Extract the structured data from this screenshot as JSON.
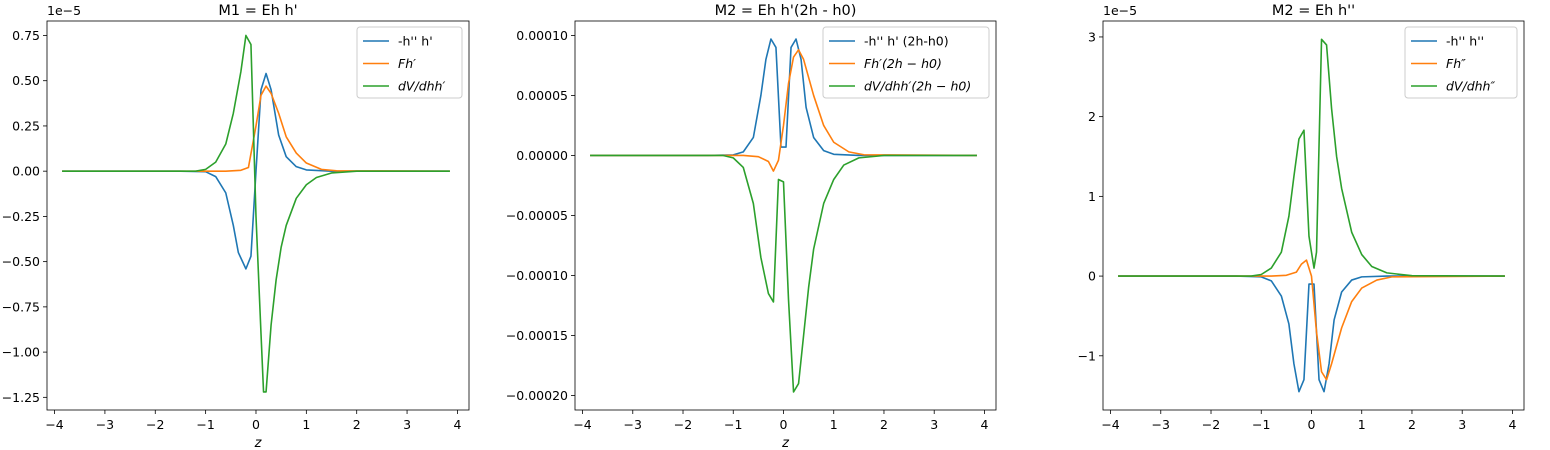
{
  "chart_data": [
    {
      "type": "line",
      "title": "M1 = Eh h'",
      "xlabel": "z",
      "xlim": [
        -4.15,
        4.23
      ],
      "ylim": [
        -1.32,
        0.83
      ],
      "y_offset_label": "1e−5",
      "xticks": [
        -4,
        -3,
        -2,
        -1,
        0,
        1,
        2,
        3,
        4
      ],
      "xtick_labels": [
        "−4",
        "−3",
        "−2",
        "−1",
        "0",
        "1",
        "2",
        "3",
        "4"
      ],
      "yticks": [
        -1.25,
        -1.0,
        -0.75,
        -0.5,
        -0.25,
        0.0,
        0.25,
        0.5,
        0.75
      ],
      "ytick_labels": [
        "−1.25",
        "−1.00",
        "−0.75",
        "−0.50",
        "−0.25",
        "0.00",
        "0.25",
        "0.50",
        "0.75"
      ],
      "legend_position": "top-right",
      "series": [
        {
          "name": "-h'' h'",
          "legend_style": "plain",
          "color": "#1f77b4",
          "points": [
            [
              -3.85,
              0
            ],
            [
              -1.5,
              0
            ],
            [
              -1.0,
              -0.003
            ],
            [
              -0.8,
              -0.03
            ],
            [
              -0.6,
              -0.12
            ],
            [
              -0.45,
              -0.3
            ],
            [
              -0.35,
              -0.45
            ],
            [
              -0.2,
              -0.54
            ],
            [
              -0.1,
              -0.47
            ],
            [
              0.0,
              0.0
            ],
            [
              0.1,
              0.45
            ],
            [
              0.2,
              0.54
            ],
            [
              0.3,
              0.45
            ],
            [
              0.45,
              0.2
            ],
            [
              0.6,
              0.08
            ],
            [
              0.8,
              0.025
            ],
            [
              1.0,
              0.007
            ],
            [
              1.5,
              0
            ],
            [
              3.85,
              0
            ]
          ]
        },
        {
          "name": "Fh′",
          "legend_style": "math",
          "color": "#ff7f0e",
          "points": [
            [
              -3.85,
              0
            ],
            [
              -0.6,
              0
            ],
            [
              -0.3,
              0.005
            ],
            [
              -0.15,
              0.02
            ],
            [
              0.0,
              0.25
            ],
            [
              0.1,
              0.42
            ],
            [
              0.2,
              0.47
            ],
            [
              0.3,
              0.43
            ],
            [
              0.45,
              0.32
            ],
            [
              0.6,
              0.19
            ],
            [
              0.8,
              0.1
            ],
            [
              1.0,
              0.045
            ],
            [
              1.3,
              0.01
            ],
            [
              1.6,
              0.002
            ],
            [
              3.85,
              0
            ]
          ]
        },
        {
          "name": "dV/dhh′",
          "legend_style": "math",
          "color": "#2ca02c",
          "points": [
            [
              -3.85,
              0
            ],
            [
              -1.2,
              0
            ],
            [
              -1.0,
              0.01
            ],
            [
              -0.8,
              0.05
            ],
            [
              -0.6,
              0.15
            ],
            [
              -0.45,
              0.32
            ],
            [
              -0.3,
              0.55
            ],
            [
              -0.2,
              0.75
            ],
            [
              -0.1,
              0.7
            ],
            [
              0.0,
              -0.25
            ],
            [
              0.1,
              -0.9
            ],
            [
              0.15,
              -1.22
            ],
            [
              0.2,
              -1.22
            ],
            [
              0.3,
              -0.85
            ],
            [
              0.4,
              -0.6
            ],
            [
              0.5,
              -0.42
            ],
            [
              0.6,
              -0.3
            ],
            [
              0.8,
              -0.15
            ],
            [
              1.0,
              -0.075
            ],
            [
              1.2,
              -0.035
            ],
            [
              1.5,
              -0.01
            ],
            [
              2.0,
              0
            ],
            [
              3.85,
              0
            ]
          ]
        }
      ]
    },
    {
      "type": "line",
      "title": "M2 = Eh h'(2h - h0)",
      "xlabel": "z",
      "xlim": [
        -4.15,
        4.23
      ],
      "ylim": [
        -0.000212,
        0.000112
      ],
      "y_offset_label": "",
      "xticks": [
        -4,
        -3,
        -2,
        -1,
        0,
        1,
        2,
        3,
        4
      ],
      "xtick_labels": [
        "−4",
        "−3",
        "−2",
        "−1",
        "0",
        "1",
        "2",
        "3",
        "4"
      ],
      "yticks": [
        -0.0002,
        -0.00015,
        -0.0001,
        -5e-05,
        0.0,
        5e-05,
        0.0001
      ],
      "ytick_labels": [
        "−0.00020",
        "−0.00015",
        "−0.00010",
        "−0.00005",
        "0.00000",
        "0.00005",
        "0.00010"
      ],
      "legend_position": "top-right",
      "series": [
        {
          "name": "-h'' h' (2h-h0)",
          "legend_style": "plain",
          "color": "#1f77b4",
          "points": [
            [
              -3.85,
              0
            ],
            [
              -1.5,
              0
            ],
            [
              -1.0,
              5e-07
            ],
            [
              -0.8,
              3e-06
            ],
            [
              -0.6,
              1.5e-05
            ],
            [
              -0.45,
              5e-05
            ],
            [
              -0.35,
              8e-05
            ],
            [
              -0.25,
              9.7e-05
            ],
            [
              -0.15,
              9e-05
            ],
            [
              -0.05,
              7e-06
            ],
            [
              0.05,
              7e-06
            ],
            [
              0.15,
              9e-05
            ],
            [
              0.25,
              9.7e-05
            ],
            [
              0.35,
              8e-05
            ],
            [
              0.45,
              4e-05
            ],
            [
              0.6,
              1.5e-05
            ],
            [
              0.8,
              4e-06
            ],
            [
              1.0,
              1e-06
            ],
            [
              1.5,
              0
            ],
            [
              3.85,
              0
            ]
          ]
        },
        {
          "name": "Fh′(2h − h0)",
          "legend_style": "math",
          "color": "#ff7f0e",
          "points": [
            [
              -3.85,
              0
            ],
            [
              -0.8,
              0
            ],
            [
              -0.5,
              -1e-06
            ],
            [
              -0.3,
              -5e-06
            ],
            [
              -0.2,
              -1.3e-05
            ],
            [
              -0.1,
              -4e-06
            ],
            [
              0.0,
              2.5e-05
            ],
            [
              0.1,
              6e-05
            ],
            [
              0.2,
              8.2e-05
            ],
            [
              0.3,
              8.8e-05
            ],
            [
              0.4,
              8e-05
            ],
            [
              0.6,
              5e-05
            ],
            [
              0.8,
              2.5e-05
            ],
            [
              1.0,
              1.1e-05
            ],
            [
              1.3,
              3e-06
            ],
            [
              1.6,
              6e-07
            ],
            [
              3.85,
              0
            ]
          ]
        },
        {
          "name": "dV/dhh′(2h − h0)",
          "legend_style": "math",
          "color": "#2ca02c",
          "points": [
            [
              -3.85,
              0
            ],
            [
              -1.2,
              0
            ],
            [
              -1.0,
              -2e-06
            ],
            [
              -0.8,
              -1e-05
            ],
            [
              -0.6,
              -4e-05
            ],
            [
              -0.45,
              -8.5e-05
            ],
            [
              -0.3,
              -0.000115
            ],
            [
              -0.2,
              -0.000122
            ],
            [
              -0.1,
              -2e-05
            ],
            [
              0.0,
              -2.2e-05
            ],
            [
              0.1,
              -0.00012
            ],
            [
              0.2,
              -0.000197
            ],
            [
              0.3,
              -0.00019
            ],
            [
              0.4,
              -0.00015
            ],
            [
              0.5,
              -0.00011
            ],
            [
              0.6,
              -7.8e-05
            ],
            [
              0.8,
              -4e-05
            ],
            [
              1.0,
              -2e-05
            ],
            [
              1.2,
              -8e-06
            ],
            [
              1.5,
              -2e-06
            ],
            [
              2.0,
              0
            ],
            [
              3.85,
              0
            ]
          ]
        }
      ]
    },
    {
      "type": "line",
      "title": "M2 = Eh h''",
      "xlabel": "",
      "xlim": [
        -4.15,
        4.23
      ],
      "ylim": [
        -1.68,
        3.2
      ],
      "y_offset_label": "1e−5",
      "xticks": [
        -4,
        -3,
        -2,
        -1,
        0,
        1,
        2,
        3,
        4
      ],
      "xtick_labels": [
        "−4",
        "−3",
        "−2",
        "−1",
        "0",
        "1",
        "2",
        "3",
        "4"
      ],
      "yticks": [
        -1,
        0,
        1,
        2,
        3
      ],
      "ytick_labels": [
        "−1",
        "0",
        "1",
        "2",
        "3"
      ],
      "legend_position": "top-right",
      "series": [
        {
          "name": "-h'' h''",
          "legend_style": "plain",
          "color": "#1f77b4",
          "points": [
            [
              -3.85,
              0
            ],
            [
              -1.5,
              0
            ],
            [
              -1.0,
              -0.01
            ],
            [
              -0.8,
              -0.06
            ],
            [
              -0.6,
              -0.25
            ],
            [
              -0.45,
              -0.6
            ],
            [
              -0.35,
              -1.1
            ],
            [
              -0.25,
              -1.45
            ],
            [
              -0.15,
              -1.3
            ],
            [
              -0.05,
              -0.1
            ],
            [
              0.05,
              -0.1
            ],
            [
              0.15,
              -1.3
            ],
            [
              0.25,
              -1.45
            ],
            [
              0.35,
              -1.1
            ],
            [
              0.45,
              -0.55
            ],
            [
              0.6,
              -0.2
            ],
            [
              0.8,
              -0.05
            ],
            [
              1.0,
              -0.01
            ],
            [
              1.5,
              0
            ],
            [
              3.85,
              0
            ]
          ]
        },
        {
          "name": "Fh″",
          "legend_style": "math",
          "color": "#ff7f0e",
          "points": [
            [
              -3.85,
              0
            ],
            [
              -0.8,
              0
            ],
            [
              -0.5,
              0.01
            ],
            [
              -0.3,
              0.05
            ],
            [
              -0.2,
              0.15
            ],
            [
              -0.1,
              0.2
            ],
            [
              0.0,
              0.0
            ],
            [
              0.1,
              -0.7
            ],
            [
              0.2,
              -1.2
            ],
            [
              0.3,
              -1.3
            ],
            [
              0.4,
              -1.1
            ],
            [
              0.6,
              -0.65
            ],
            [
              0.8,
              -0.32
            ],
            [
              1.0,
              -0.15
            ],
            [
              1.3,
              -0.05
            ],
            [
              1.6,
              -0.01
            ],
            [
              3.85,
              0
            ]
          ]
        },
        {
          "name": "dV/dhh″",
          "legend_style": "math",
          "color": "#2ca02c",
          "points": [
            [
              -3.85,
              0
            ],
            [
              -1.2,
              0
            ],
            [
              -1.0,
              0.02
            ],
            [
              -0.8,
              0.1
            ],
            [
              -0.6,
              0.3
            ],
            [
              -0.45,
              0.75
            ],
            [
              -0.35,
              1.25
            ],
            [
              -0.25,
              1.72
            ],
            [
              -0.15,
              1.83
            ],
            [
              -0.05,
              0.5
            ],
            [
              0.05,
              0.1
            ],
            [
              0.1,
              0.3
            ],
            [
              0.2,
              2.97
            ],
            [
              0.3,
              2.9
            ],
            [
              0.4,
              2.1
            ],
            [
              0.5,
              1.5
            ],
            [
              0.6,
              1.1
            ],
            [
              0.8,
              0.55
            ],
            [
              1.0,
              0.27
            ],
            [
              1.2,
              0.12
            ],
            [
              1.5,
              0.04
            ],
            [
              2.0,
              0.005
            ],
            [
              3.85,
              0
            ]
          ]
        }
      ]
    }
  ]
}
